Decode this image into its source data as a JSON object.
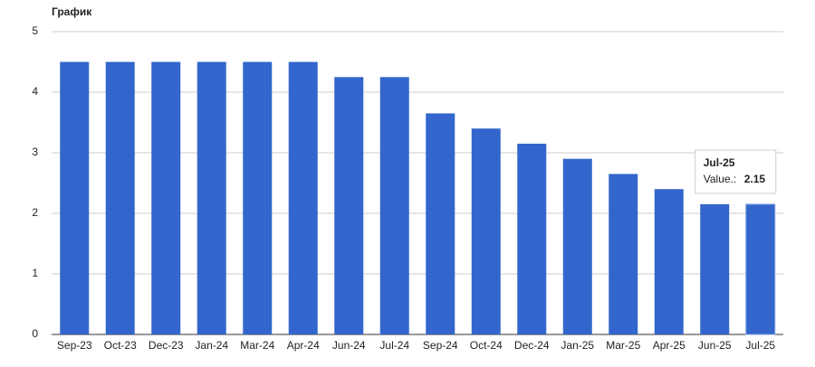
{
  "chart_data": {
    "type": "bar",
    "title": "График",
    "categories": [
      "Sep-23",
      "Oct-23",
      "Dec-23",
      "Jan-24",
      "Mar-24",
      "Apr-24",
      "Jun-24",
      "Jul-24",
      "Sep-24",
      "Oct-24",
      "Dec-24",
      "Jan-25",
      "Mar-25",
      "Apr-25",
      "Jun-25",
      "Jul-25"
    ],
    "values": [
      4.5,
      4.5,
      4.5,
      4.5,
      4.5,
      4.5,
      4.25,
      4.25,
      3.65,
      3.4,
      3.15,
      2.9,
      2.65,
      2.4,
      2.15,
      2.15
    ],
    "color": "#3366cc",
    "ylim": [
      0,
      5
    ],
    "yticks": [
      0,
      1,
      2,
      3,
      4,
      5
    ],
    "grid": true,
    "tooltip_label": "Value.:"
  }
}
